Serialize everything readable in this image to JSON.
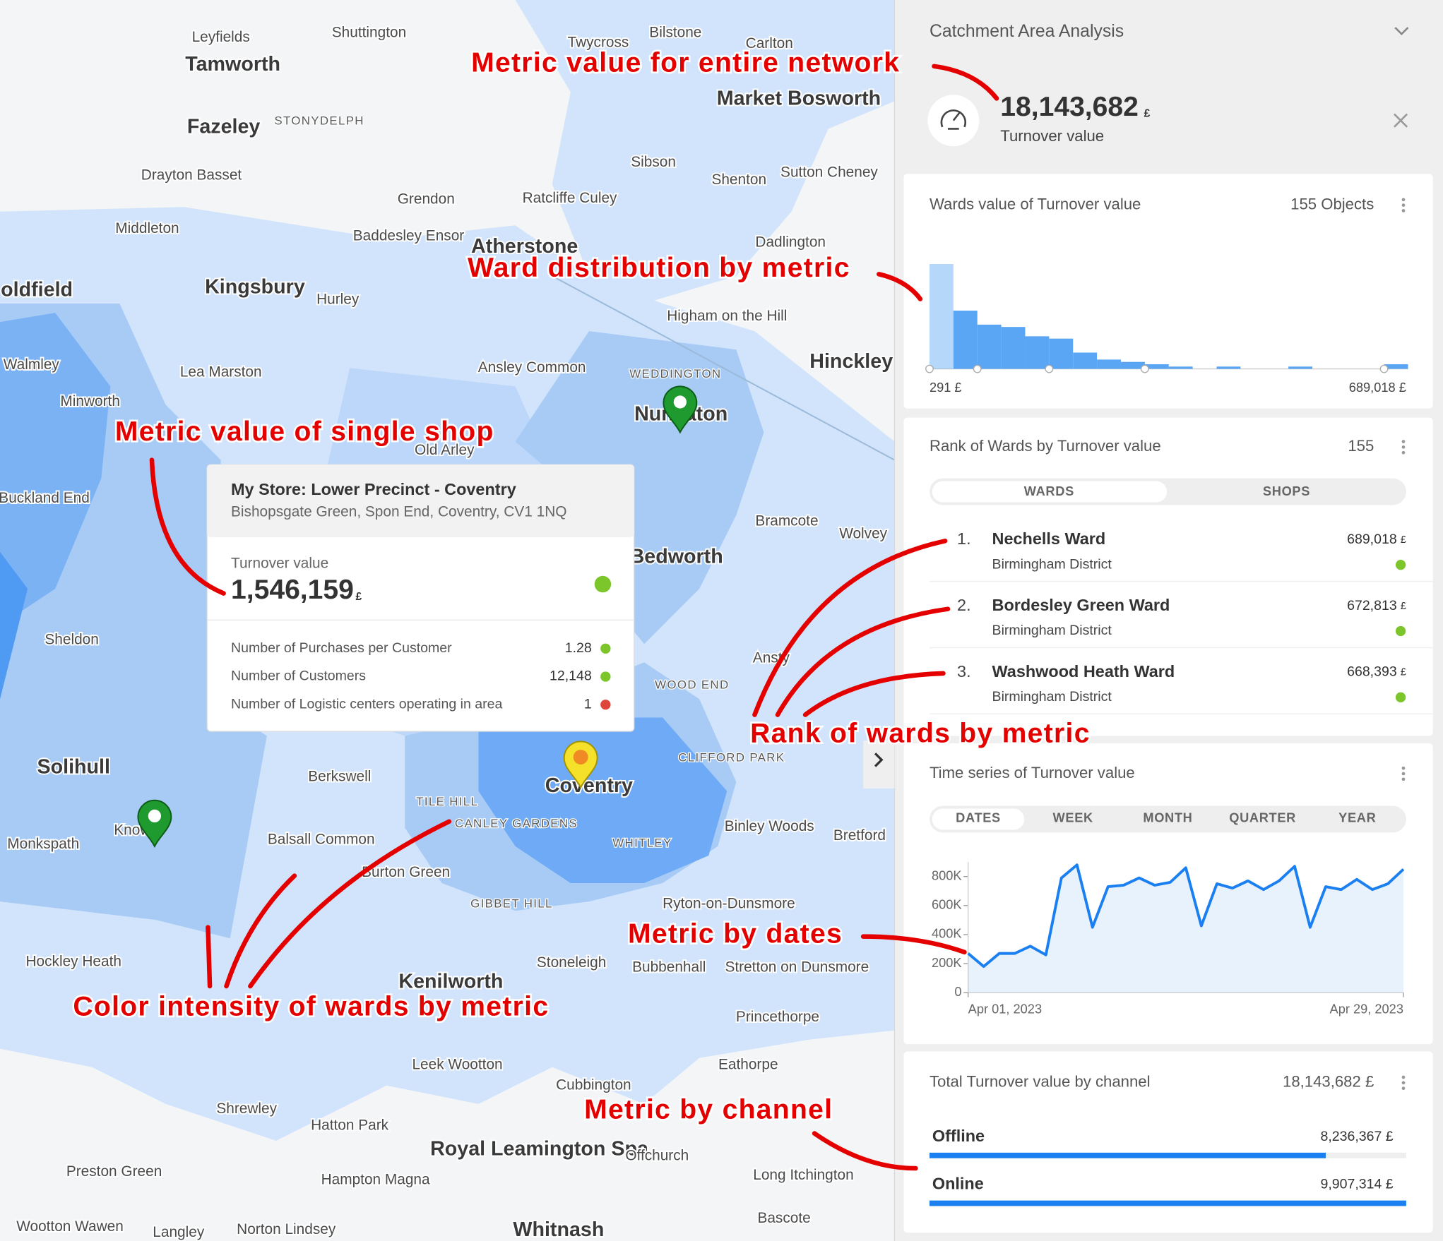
{
  "map": {
    "labels": [
      "Leyfields",
      "Shuttington",
      "Twycross",
      "Bilstone",
      "Carlton",
      "Tamworth",
      "Market Bosworth",
      "Fazeley",
      "STONYDELPH",
      "Drayton Basset",
      "Sibson",
      "Shenton",
      "Sutton Cheney",
      "Grendon",
      "Ratcliffe Culey",
      "Middleton",
      "Baddesley Ensor",
      "Atherstone",
      "Dadlington",
      "oldfield",
      "Kingsbury",
      "Hurley",
      "Higham on the Hill",
      "Walmley",
      "Lea Marston",
      "Ansley Common",
      "Hinckley",
      "WEDDINGTON",
      "Minworth",
      "Nuneaton",
      "Old Arley",
      "Buckland End",
      "Bramcote",
      "Wolvey",
      "Bedworth",
      "Sheldon",
      "Ansty",
      "WOOD END",
      "Solihull",
      "Berkswell",
      "CLIFFORD PARK",
      "Coventry",
      "TILE HILL",
      "CANLEY GARDENS",
      "WHITLEY",
      "Binley Woods",
      "Bretford",
      "Monkspath",
      "Knowle",
      "Balsall Common",
      "Burton Green",
      "GIBBET HILL",
      "Ryton-on-Dunsmore",
      "Hockley Heath",
      "Kenilworth",
      "Stoneleigh",
      "Bubbenhall",
      "Stretton on Dunsmore",
      "Princethorpe",
      "Leek Wootton",
      "Eathorpe",
      "Cubbington",
      "Shrewley",
      "Hatton Park",
      "Royal Leamington Spa",
      "Offchurch",
      "Long Itchington",
      "Preston Green",
      "Hampton Magna",
      "Wootton Wawen",
      "Langley",
      "Norton Lindsey",
      "Whitnash",
      "Bascote"
    ],
    "popup": {
      "title": "My Store: Lower Precinct - Coventry",
      "address": "Bishopsgate Green, Spon End, Coventry, CV1 1NQ",
      "metric_label": "Turnover value",
      "metric_value": "1,546,159",
      "metric_unit": "£",
      "metric_status": "#7cc62b",
      "rows": [
        {
          "label": "Number of Purchases per Customer",
          "value": "1.28",
          "status": "#7cc62b"
        },
        {
          "label": "Number of Customers",
          "value": "12,148",
          "status": "#7cc62b"
        },
        {
          "label": "Number of Logistic centers operating in area",
          "value": "1",
          "status": "#e0453a"
        }
      ]
    }
  },
  "annotations": [
    "Metric value for entire network",
    "Ward distribution by metric",
    "Metric value of single shop",
    "Rank of wards by metric",
    "Metric by dates",
    "Color intensity of wards by metric",
    "Metric by channel"
  ],
  "panel": {
    "title": "Catchment Area Analysis",
    "total": {
      "value": "18,143,682",
      "unit": "£",
      "label": "Turnover value"
    },
    "distribution": {
      "title": "Wards value of Turnover value",
      "count": "155 Objects",
      "counts": [
        45,
        25,
        19,
        18,
        14,
        13,
        7,
        4,
        3,
        2,
        1,
        0,
        1,
        0,
        0,
        1,
        0,
        0,
        0,
        2
      ],
      "min_label": "291 £",
      "max_label": "689,018 £",
      "color": "#5aa6f5"
    },
    "rank": {
      "title": "Rank of Wards by Turnover value",
      "count": "155",
      "tabs": [
        "WARDS",
        "SHOPS"
      ],
      "items": [
        {
          "rank": "1.",
          "name": "Nechells Ward",
          "district": "Birmingham District",
          "value": "689,018",
          "unit": "£"
        },
        {
          "rank": "2.",
          "name": "Bordesley Green Ward",
          "district": "Birmingham District",
          "value": "672,813",
          "unit": "£"
        },
        {
          "rank": "3.",
          "name": "Washwood Heath Ward",
          "district": "Birmingham District",
          "value": "668,393",
          "unit": "£"
        }
      ]
    },
    "time_series": {
      "title": "Time series of Turnover value",
      "tabs": [
        "DATES",
        "WEEK",
        "MONTH",
        "QUARTER",
        "YEAR"
      ],
      "x": [
        "Apr 01, 2023",
        null,
        null,
        null,
        null,
        null,
        null,
        null,
        null,
        null,
        null,
        null,
        null,
        null,
        null,
        null,
        null,
        null,
        null,
        null,
        null,
        null,
        null,
        null,
        null,
        null,
        null,
        null,
        "Apr 29, 2023"
      ],
      "values": [
        270000,
        180000,
        270000,
        270000,
        320000,
        260000,
        790000,
        880000,
        450000,
        730000,
        740000,
        790000,
        740000,
        760000,
        860000,
        460000,
        750000,
        720000,
        770000,
        710000,
        770000,
        870000,
        450000,
        730000,
        710000,
        780000,
        710000,
        750000,
        850000
      ],
      "ylim": [
        0,
        900000
      ],
      "yticks": [
        0,
        {
          "value": 200000,
          "label": "200K"
        },
        {
          "value": 400000,
          "label": "400K"
        },
        {
          "value": 600000,
          "label": "600K"
        },
        {
          "value": 800000,
          "label": "800K"
        }
      ],
      "color": "#1a7ff0"
    },
    "channels": {
      "title": "Total Turnover value by channel",
      "total": "18,143,682 £",
      "categories": [
        "Offline",
        "Online"
      ],
      "values": [
        8236367,
        9907314
      ],
      "value_labels": [
        "8,236,367 £",
        "9,907,314 £"
      ],
      "color": "#1a7ff0"
    }
  }
}
